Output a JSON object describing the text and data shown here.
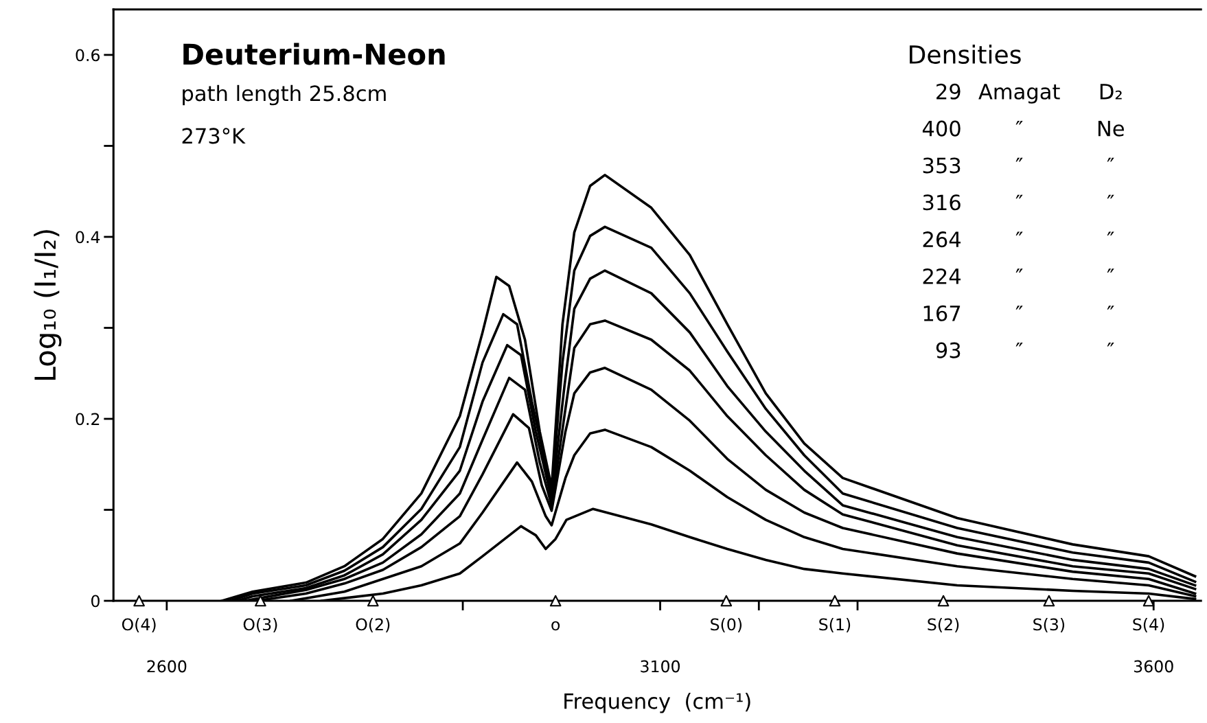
{
  "chart_data": {
    "type": "line",
    "title": "Deuterium-Neon",
    "xlabel": "Frequency  (cm⁻¹)",
    "ylabel": "Log₁₀ (I₁/I₂)",
    "xlim": [
      2546,
      3648
    ],
    "ylim": [
      0,
      0.65
    ],
    "xticks": [
      2600,
      {
        "value": 2900,
        "label": null
      },
      3100,
      {
        "value": 3200,
        "label": null
      },
      {
        "value": 3300,
        "label": null
      },
      3600
    ],
    "yticks": [
      0,
      {
        "value": 0.1,
        "label": null
      },
      0.2,
      {
        "value": 0.3,
        "label": null
      },
      0.4,
      {
        "value": 0.5,
        "label": null
      },
      0.6
    ],
    "grid": false,
    "legend": false,
    "marker": "none",
    "line_style": "solid",
    "series": [
      {
        "color": "#000000",
        "x": [
          2656,
          2687,
          2741,
          2780,
          2819,
          2858,
          2897,
          2920,
          2934,
          2947,
          2963,
          2978,
          2990,
          3001,
          3013,
          3029,
          3044,
          3091,
          3130,
          3168,
          3207,
          3246,
          3285,
          3401,
          3518,
          3595,
          3642
        ],
        "values": [
          0,
          0.01,
          0.02,
          0.038,
          0.068,
          0.118,
          0.203,
          0.295,
          0.356,
          0.346,
          0.287,
          0.186,
          0.125,
          0.304,
          0.405,
          0.456,
          0.468,
          0.432,
          0.38,
          0.304,
          0.228,
          0.173,
          0.135,
          0.091,
          0.062,
          0.049,
          0.027
        ]
      },
      {
        "color": "#000000",
        "x": [
          2664,
          2687,
          2741,
          2780,
          2819,
          2858,
          2897,
          2920,
          2941,
          2955,
          2970,
          2990,
          3001,
          3013,
          3029,
          3044,
          3091,
          3130,
          3168,
          3207,
          3246,
          3285,
          3401,
          3518,
          3595,
          3642
        ],
        "values": [
          0,
          0.008,
          0.017,
          0.033,
          0.059,
          0.101,
          0.169,
          0.262,
          0.315,
          0.304,
          0.219,
          0.118,
          0.262,
          0.363,
          0.401,
          0.411,
          0.388,
          0.338,
          0.274,
          0.211,
          0.16,
          0.118,
          0.08,
          0.053,
          0.042,
          0.021
        ]
      },
      {
        "color": "#000000",
        "x": [
          2671,
          2687,
          2741,
          2780,
          2819,
          2858,
          2897,
          2920,
          2945,
          2959,
          2974,
          2990,
          3003,
          3013,
          3029,
          3044,
          3091,
          3130,
          3168,
          3207,
          3246,
          3285,
          3401,
          3518,
          3595,
          3642
        ],
        "values": [
          0,
          0.005,
          0.014,
          0.028,
          0.051,
          0.089,
          0.143,
          0.219,
          0.281,
          0.27,
          0.186,
          0.112,
          0.236,
          0.321,
          0.354,
          0.363,
          0.338,
          0.295,
          0.236,
          0.186,
          0.143,
          0.105,
          0.07,
          0.045,
          0.035,
          0.017
        ]
      },
      {
        "color": "#000000",
        "x": [
          2679,
          2741,
          2780,
          2819,
          2858,
          2897,
          2920,
          2947,
          2963,
          2978,
          2990,
          3004,
          3013,
          3029,
          3044,
          3091,
          3130,
          3168,
          3207,
          3246,
          3285,
          3401,
          3518,
          3595,
          3642
        ],
        "values": [
          0,
          0.012,
          0.024,
          0.042,
          0.073,
          0.118,
          0.177,
          0.245,
          0.232,
          0.152,
          0.105,
          0.211,
          0.278,
          0.304,
          0.308,
          0.287,
          0.253,
          0.203,
          0.16,
          0.122,
          0.095,
          0.061,
          0.038,
          0.03,
          0.013
        ]
      },
      {
        "color": "#000000",
        "x": [
          2691,
          2741,
          2780,
          2819,
          2858,
          2897,
          2920,
          2951,
          2967,
          2980,
          2990,
          3004,
          3013,
          3029,
          3044,
          3091,
          3130,
          3168,
          3207,
          3246,
          3285,
          3401,
          3518,
          3595,
          3642
        ],
        "values": [
          0,
          0.008,
          0.019,
          0.034,
          0.059,
          0.093,
          0.139,
          0.205,
          0.19,
          0.127,
          0.099,
          0.186,
          0.228,
          0.251,
          0.256,
          0.232,
          0.198,
          0.156,
          0.122,
          0.097,
          0.08,
          0.052,
          0.032,
          0.024,
          0.008
        ]
      },
      {
        "color": "#000000",
        "x": [
          2726,
          2780,
          2819,
          2858,
          2897,
          2920,
          2955,
          2970,
          2984,
          2990,
          3004,
          3013,
          3029,
          3044,
          3091,
          3130,
          3168,
          3207,
          3246,
          3285,
          3401,
          3518,
          3595,
          3642
        ],
        "values": [
          0,
          0.01,
          0.024,
          0.038,
          0.063,
          0.097,
          0.152,
          0.131,
          0.093,
          0.083,
          0.135,
          0.16,
          0.184,
          0.188,
          0.169,
          0.143,
          0.114,
          0.089,
          0.07,
          0.057,
          0.038,
          0.024,
          0.017,
          0.005
        ]
      },
      {
        "color": "#000000",
        "x": [
          2757,
          2819,
          2858,
          2897,
          2920,
          2959,
          2974,
          2984,
          2994,
          3005,
          3032,
          3091,
          3130,
          3168,
          3207,
          3246,
          3285,
          3401,
          3518,
          3595,
          3642
        ],
        "values": [
          0,
          0.008,
          0.017,
          0.03,
          0.049,
          0.082,
          0.072,
          0.057,
          0.068,
          0.089,
          0.101,
          0.084,
          0.07,
          0.057,
          0.045,
          0.035,
          0.03,
          0.017,
          0.011,
          0.008,
          0.002
        ]
      }
    ],
    "annotations": [
      "path length 25.8cm",
      "273°K",
      "Densities",
      "29",
      "Amagat",
      "D₂",
      "400",
      "″",
      "Ne",
      "353",
      "″",
      "″",
      "316",
      "″",
      "″",
      "264",
      "″",
      "″",
      "224",
      "″",
      "″",
      "167",
      "″",
      "″",
      "93",
      "″",
      "″",
      {
        "text": "O(4)",
        "x": 2572,
        "y": 0
      },
      {
        "text": "O(3)",
        "x": 2695,
        "y": 0
      },
      {
        "text": "O(2)",
        "x": 2809,
        "y": 0
      },
      {
        "text": "o",
        "x": 2994,
        "y": 0
      },
      {
        "text": "S(0)",
        "x": 3167,
        "y": 0
      },
      {
        "text": "S(1)",
        "x": 3277,
        "y": 0
      },
      {
        "text": "S(2)",
        "x": 3387,
        "y": 0
      },
      {
        "text": "S(3)",
        "x": 3494,
        "y": 0
      },
      {
        "text": "S(4)",
        "x": 3595,
        "y": 0
      }
    ]
  }
}
